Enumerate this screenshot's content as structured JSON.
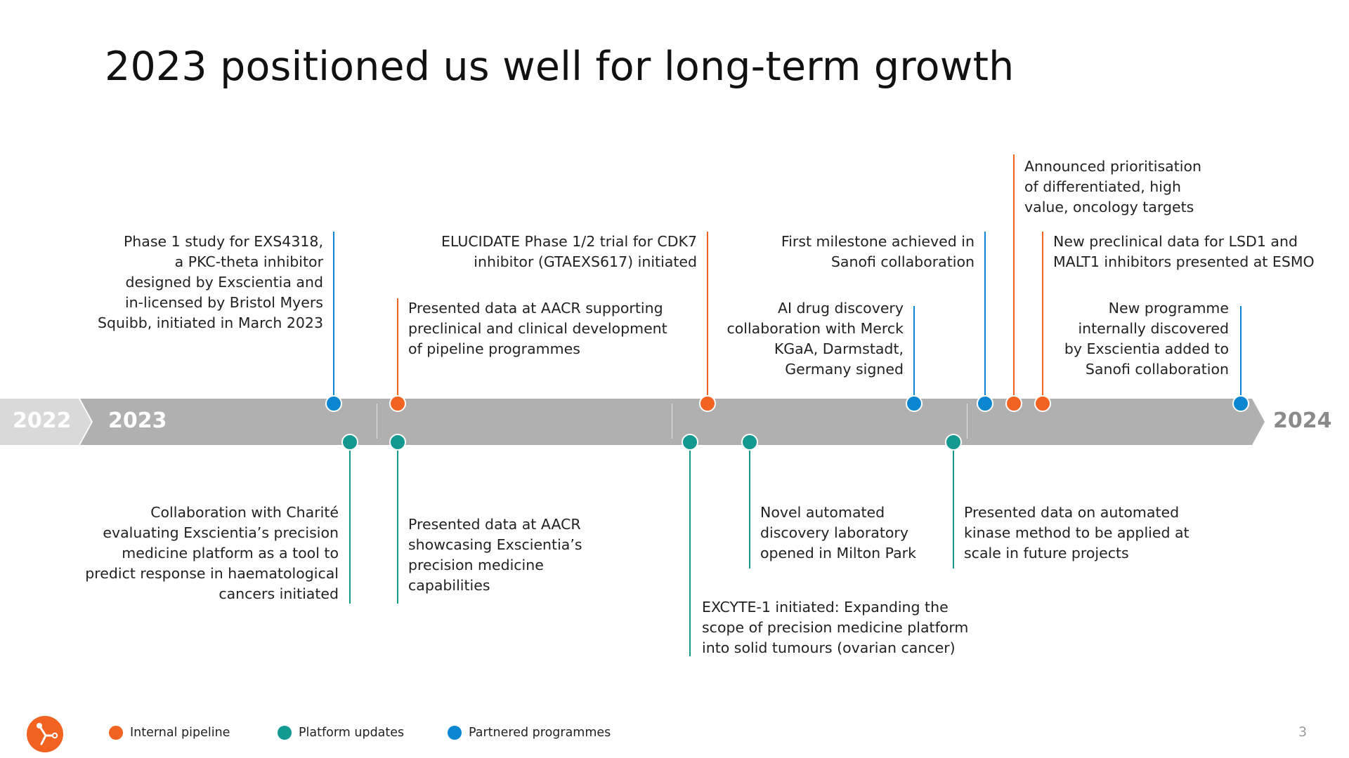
{
  "title": "2023 positioned us well for long-term growth",
  "colors": {
    "internal": "#f26322",
    "platform": "#13998f",
    "partnered": "#0b86d1",
    "bar": "#b0b0b0",
    "bar_light": "#d9d9d9"
  },
  "years": {
    "prev": "2022",
    "current": "2023",
    "next": "2024"
  },
  "events": {
    "e1": {
      "category": "partnered",
      "text": "Phase 1 study for EXS4318,\na PKC-theta inhibitor\ndesigned by Exscientia and\nin-licensed by Bristol Myers\nSquibb, initiated in March 2023"
    },
    "e2": {
      "category": "internal",
      "text": "Presented data at AACR supporting\npreclinical and clinical development\nof pipeline programmes"
    },
    "e3": {
      "category": "internal",
      "text": "ELUCIDATE Phase 1/2 trial for CDK7\ninhibitor (GTAEXS617) initiated"
    },
    "e4": {
      "category": "partnered",
      "text": "AI drug discovery\ncollaboration with Merck\nKGaA, Darmstadt,\nGermany signed"
    },
    "e5": {
      "category": "partnered",
      "text": "First milestone achieved in\nSanofi collaboration"
    },
    "e6": {
      "category": "internal",
      "text": "Announced prioritisation\nof differentiated, high\nvalue, oncology targets"
    },
    "e7": {
      "category": "internal",
      "text": "New preclinical data for LSD1 and\nMALT1 inhibitors presented at ESMO"
    },
    "e8": {
      "category": "partnered",
      "text": "New programme\ninternally discovered\nby Exscientia added to\nSanofi collaboration"
    },
    "b1": {
      "category": "platform",
      "text": "Collaboration with Charité\nevaluating Exscientia’s precision\nmedicine platform as a tool to\npredict response in haematological\ncancers initiated"
    },
    "b2": {
      "category": "platform",
      "text": "Presented data at AACR\nshowcasing Exscientia’s\nprecision medicine\ncapabilities"
    },
    "b3": {
      "category": "platform",
      "text": "EXCYTE-1 initiated: Expanding the\nscope of precision medicine platform\ninto solid tumours (ovarian cancer)"
    },
    "b4": {
      "category": "platform",
      "text": "Novel automated\ndiscovery laboratory\nopened in Milton Park"
    },
    "b5": {
      "category": "platform",
      "text": "Presented data on automated\nkinase method to be applied at\nscale in future projects"
    }
  },
  "legend": {
    "internal": "Internal pipeline",
    "platform": "Platform updates",
    "partnered": "Partnered programmes"
  },
  "logo_icon": "exscientia-logo-icon",
  "page_number": "3"
}
